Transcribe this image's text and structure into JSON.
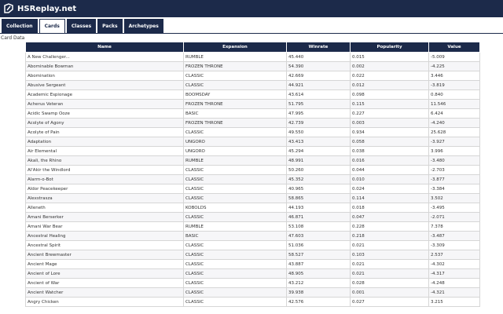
{
  "header": {
    "title": "HSReplay.net"
  },
  "tabs": [
    "Collection",
    "Cards",
    "Classes",
    "Packs",
    "Archetypes"
  ],
  "section_title": "Card Data",
  "table": {
    "columns": [
      "Name",
      "Expansion",
      "Winrate",
      "Popularity",
      "Value"
    ],
    "rows": [
      [
        "A New Challenger...",
        "RUMBLE",
        "45.440",
        "0.015",
        "-5.009"
      ],
      [
        "Abominable Bowman",
        "FROZEN THRONE",
        "54.390",
        "0.002",
        "-4.225"
      ],
      [
        "Abomination",
        "CLASSIC",
        "42.669",
        "0.022",
        "3.446"
      ],
      [
        "Abusive Sergeant",
        "CLASSIC",
        "44.921",
        "0.012",
        "-3.819"
      ],
      [
        "Academic Espionage",
        "BOOMSDAY",
        "43.614",
        "0.098",
        "0.840"
      ],
      [
        "Acherus Veteran",
        "FROZEN THRONE",
        "51.795",
        "0.115",
        "11.546"
      ],
      [
        "Acidic Swamp Ooze",
        "BASIC",
        "47.995",
        "0.227",
        "6.424"
      ],
      [
        "Acolyte of Agony",
        "FROZEN THRONE",
        "42.739",
        "0.003",
        "-4.240"
      ],
      [
        "Acolyte of Pain",
        "CLASSIC",
        "49.550",
        "0.934",
        "25.628"
      ],
      [
        "Adaptation",
        "UNGORO",
        "43.413",
        "0.058",
        "-3.927"
      ],
      [
        "Air Elemental",
        "UNGORO",
        "45.294",
        "0.038",
        "3.996"
      ],
      [
        "Akali, the Rhino",
        "RUMBLE",
        "48.991",
        "0.016",
        "-3.480"
      ],
      [
        "Al'Akir the Windlord",
        "CLASSIC",
        "50.260",
        "0.044",
        "-2.703"
      ],
      [
        "Alarm-o-Bot",
        "CLASSIC",
        "45.352",
        "0.010",
        "-3.877"
      ],
      [
        "Aldor Peacekeeper",
        "CLASSIC",
        "40.965",
        "0.024",
        "-3.384"
      ],
      [
        "Alexstrasza",
        "CLASSIC",
        "58.865",
        "0.114",
        "3.502"
      ],
      [
        "Alleneth",
        "KOBOLDS",
        "44.193",
        "0.018",
        "-3.495"
      ],
      [
        "Amani Berserker",
        "CLASSIC",
        "46.871",
        "0.047",
        "-2.071"
      ],
      [
        "Amani War Bear",
        "RUMBLE",
        "53.108",
        "0.228",
        "7.378"
      ],
      [
        "Ancestral Healing",
        "BASIC",
        "47.603",
        "0.218",
        "-3.487"
      ],
      [
        "Ancestral Spirit",
        "CLASSIC",
        "51.036",
        "0.021",
        "-3.309"
      ],
      [
        "Ancient Brewmaster",
        "CLASSIC",
        "58.527",
        "0.103",
        "2.537"
      ],
      [
        "Ancient Mage",
        "CLASSIC",
        "43.887",
        "0.021",
        "-4.302"
      ],
      [
        "Ancient of Lore",
        "CLASSIC",
        "48.905",
        "0.021",
        "-4.317"
      ],
      [
        "Ancient of War",
        "CLASSIC",
        "43.212",
        "0.028",
        "-4.248"
      ],
      [
        "Ancient Watcher",
        "CLASSIC",
        "39.938",
        "0.001",
        "-4.321"
      ],
      [
        "Angry Chicken",
        "CLASSIC",
        "42.576",
        "0.027",
        "3.215"
      ]
    ]
  }
}
